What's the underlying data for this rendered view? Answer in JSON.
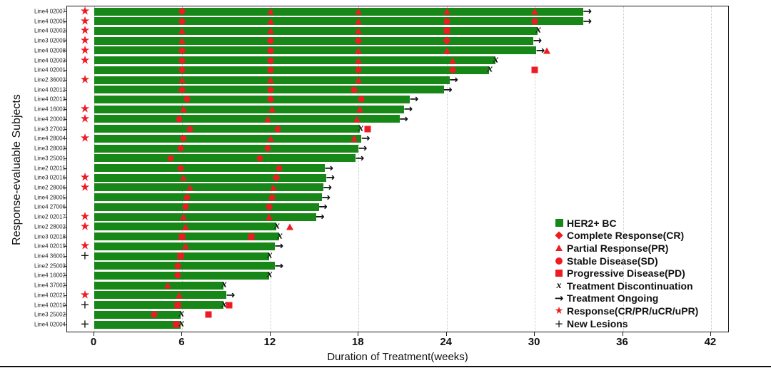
{
  "colors": {
    "bar_green": "#178717",
    "marker_red": "#ed1c24",
    "marker_black": "#111111",
    "gridline": "#c9c9c9"
  },
  "glyphs": {
    "discontinuation": "x",
    "ongoing": "→",
    "response_star": "★",
    "new_lesions": "+"
  },
  "chart_data": {
    "type": "bar",
    "orientation": "horizontal-swimmer",
    "title": "",
    "xlabel": "Duration of Treatment(weeks)",
    "ylabel": "Response-evaluable Subjects",
    "xlim": [
      0,
      42
    ],
    "xticks": [
      0,
      6,
      12,
      18,
      24,
      30,
      36,
      42
    ],
    "grid": "vertical-dotted",
    "legend_position": "bottom-right-inside",
    "legend": [
      {
        "marker": "green-square",
        "label": "HER2+ BC"
      },
      {
        "marker": "red-diamond",
        "label": "Complete Response(CR)"
      },
      {
        "marker": "red-triangle",
        "label": "Partial Response(PR)"
      },
      {
        "marker": "red-circle",
        "label": "Stable Disease(SD)"
      },
      {
        "marker": "red-square",
        "label": "Progressive Disease(PD)"
      },
      {
        "marker": "black-x",
        "label": "Treatment Discontinuation"
      },
      {
        "marker": "black-arrow",
        "label": "Treatment Ongoing"
      },
      {
        "marker": "red-star",
        "label": "Response(CR/PR/uCR/uPR)"
      },
      {
        "marker": "black-plus",
        "label": "New Lesions"
      }
    ],
    "rows": [
      {
        "subject": "Line4 02007",
        "duration_weeks": 33.3,
        "end": "ongoing",
        "response_star": true,
        "new_lesions": false,
        "assessments": [
          {
            "week": 6,
            "result": "SD"
          },
          {
            "week": 12,
            "result": "PR"
          },
          {
            "week": 18,
            "result": "PR"
          },
          {
            "week": 24,
            "result": "PR"
          },
          {
            "week": 30,
            "result": "PR"
          }
        ]
      },
      {
        "subject": "Line4 02005",
        "duration_weeks": 33.3,
        "end": "ongoing",
        "response_star": true,
        "new_lesions": false,
        "assessments": [
          {
            "week": 6,
            "result": "SD"
          },
          {
            "week": 12,
            "result": "PR"
          },
          {
            "week": 18,
            "result": "PR"
          },
          {
            "week": 24,
            "result": "SD"
          },
          {
            "week": 30,
            "result": "SD"
          }
        ]
      },
      {
        "subject": "Line4 02002",
        "duration_weeks": 30.2,
        "end": "discontinued",
        "response_star": true,
        "new_lesions": false,
        "assessments": [
          {
            "week": 6,
            "result": "PR"
          },
          {
            "week": 12,
            "result": "PR"
          },
          {
            "week": 18,
            "result": "PR"
          },
          {
            "week": 24,
            "result": "PD"
          }
        ]
      },
      {
        "subject": "Line3 02009",
        "duration_weeks": 29.9,
        "end": "ongoing",
        "response_star": true,
        "new_lesions": false,
        "assessments": [
          {
            "week": 6,
            "result": "PR"
          },
          {
            "week": 12,
            "result": "CR"
          },
          {
            "week": 18,
            "result": "CR"
          },
          {
            "week": 24,
            "result": "CR"
          }
        ]
      },
      {
        "subject": "Line4 02008",
        "duration_weeks": 30.1,
        "end": "ongoing",
        "response_star": true,
        "new_lesions": false,
        "assessments": [
          {
            "week": 6,
            "result": "SD"
          },
          {
            "week": 12,
            "result": "SD"
          },
          {
            "week": 18,
            "result": "PR"
          },
          {
            "week": 24,
            "result": "PR"
          },
          {
            "week": 30.8,
            "result": "PR"
          }
        ]
      },
      {
        "subject": "Line4 02003",
        "duration_weeks": 27.3,
        "end": "discontinued",
        "response_star": true,
        "new_lesions": false,
        "assessments": [
          {
            "week": 6,
            "result": "SD"
          },
          {
            "week": 12,
            "result": "SD"
          },
          {
            "week": 18,
            "result": "PR"
          },
          {
            "week": 24.4,
            "result": "PR"
          }
        ]
      },
      {
        "subject": "Line4 02001",
        "duration_weeks": 26.9,
        "end": "discontinued",
        "response_star": false,
        "new_lesions": false,
        "assessments": [
          {
            "week": 6,
            "result": "SD"
          },
          {
            "week": 12,
            "result": "SD"
          },
          {
            "week": 18,
            "result": "SD"
          },
          {
            "week": 24.4,
            "result": "SD"
          },
          {
            "week": 30,
            "result": "PD"
          }
        ]
      },
      {
        "subject": "Line2 36002",
        "duration_weeks": 24.2,
        "end": "ongoing",
        "response_star": true,
        "new_lesions": false,
        "assessments": [
          {
            "week": 6,
            "result": "PR"
          },
          {
            "week": 12,
            "result": "PR"
          },
          {
            "week": 18,
            "result": "PR"
          }
        ]
      },
      {
        "subject": "Line4 02012",
        "duration_weeks": 23.8,
        "end": "ongoing",
        "response_star": false,
        "new_lesions": false,
        "assessments": [
          {
            "week": 6,
            "result": "SD"
          },
          {
            "week": 12,
            "result": "SD"
          },
          {
            "week": 17.7,
            "result": "SD"
          }
        ]
      },
      {
        "subject": "Line4 02013",
        "duration_weeks": 21.5,
        "end": "ongoing",
        "response_star": false,
        "new_lesions": false,
        "assessments": [
          {
            "week": 6.3,
            "result": "SD"
          },
          {
            "week": 12,
            "result": "SD"
          },
          {
            "week": 18.2,
            "result": "SD"
          }
        ]
      },
      {
        "subject": "Line4 16003",
        "duration_weeks": 21.1,
        "end": "ongoing",
        "response_star": true,
        "new_lesions": false,
        "assessments": [
          {
            "week": 6.1,
            "result": "PR"
          },
          {
            "week": 12.1,
            "result": "PR"
          },
          {
            "week": 18.1,
            "result": "PR"
          }
        ]
      },
      {
        "subject": "Line4 20003",
        "duration_weeks": 20.8,
        "end": "ongoing",
        "response_star": true,
        "new_lesions": false,
        "assessments": [
          {
            "week": 5.8,
            "result": "SD"
          },
          {
            "week": 11.8,
            "result": "PR"
          },
          {
            "week": 17.9,
            "result": "PR"
          }
        ]
      },
      {
        "subject": "Line3 27002",
        "duration_weeks": 18.1,
        "end": "discontinued",
        "response_star": false,
        "new_lesions": false,
        "assessments": [
          {
            "week": 6.5,
            "result": "SD"
          },
          {
            "week": 12.5,
            "result": "SD"
          },
          {
            "week": 18.6,
            "result": "PD"
          }
        ]
      },
      {
        "subject": "Line4 28004",
        "duration_weeks": 18.2,
        "end": "ongoing",
        "response_star": true,
        "new_lesions": false,
        "assessments": [
          {
            "week": 6.1,
            "result": "SD"
          },
          {
            "week": 12,
            "result": "PR"
          },
          {
            "week": 17.7,
            "result": "PR"
          }
        ]
      },
      {
        "subject": "Line3 28003",
        "duration_weeks": 18.0,
        "end": "ongoing",
        "response_star": false,
        "new_lesions": false,
        "assessments": [
          {
            "week": 5.9,
            "result": "SD"
          },
          {
            "week": 11.8,
            "result": "SD"
          }
        ]
      },
      {
        "subject": "Line3 25001",
        "duration_weeks": 17.8,
        "end": "ongoing",
        "response_star": false,
        "new_lesions": false,
        "assessments": [
          {
            "week": 5.2,
            "result": "SD"
          },
          {
            "week": 11.3,
            "result": "SD"
          }
        ]
      },
      {
        "subject": "Line2 02015",
        "duration_weeks": 15.7,
        "end": "ongoing",
        "response_star": false,
        "new_lesions": false,
        "assessments": [
          {
            "week": 5.9,
            "result": "SD"
          },
          {
            "week": 12.6,
            "result": "SD"
          }
        ]
      },
      {
        "subject": "Line3 02016",
        "duration_weeks": 15.8,
        "end": "ongoing",
        "response_star": true,
        "new_lesions": false,
        "assessments": [
          {
            "week": 6.1,
            "result": "PR"
          },
          {
            "week": 12.4,
            "result": "CR"
          }
        ]
      },
      {
        "subject": "Line2 28006",
        "duration_weeks": 15.6,
        "end": "ongoing",
        "response_star": true,
        "new_lesions": false,
        "assessments": [
          {
            "week": 6.5,
            "result": "PR"
          },
          {
            "week": 12.2,
            "result": "PR"
          }
        ]
      },
      {
        "subject": "Line4 28005",
        "duration_weeks": 15.5,
        "end": "ongoing",
        "response_star": false,
        "new_lesions": false,
        "assessments": [
          {
            "week": 6.3,
            "result": "SD"
          },
          {
            "week": 12.1,
            "result": "SD"
          }
        ]
      },
      {
        "subject": "Line4 27006",
        "duration_weeks": 15.3,
        "end": "ongoing",
        "response_star": false,
        "new_lesions": false,
        "assessments": [
          {
            "week": 6.2,
            "result": "SD"
          },
          {
            "week": 11.9,
            "result": "SD"
          }
        ]
      },
      {
        "subject": "Line2 02017",
        "duration_weeks": 15.1,
        "end": "ongoing",
        "response_star": true,
        "new_lesions": false,
        "assessments": [
          {
            "week": 6.1,
            "result": "PR"
          },
          {
            "week": 11.9,
            "result": "PR"
          }
        ]
      },
      {
        "subject": "Line2 28002",
        "duration_weeks": 12.4,
        "end": "discontinued",
        "response_star": true,
        "new_lesions": false,
        "assessments": [
          {
            "week": 6.2,
            "result": "PR"
          },
          {
            "week": 13.3,
            "result": "PR"
          }
        ]
      },
      {
        "subject": "Line3 02018",
        "duration_weeks": 12.6,
        "end": "discontinued",
        "response_star": false,
        "new_lesions": false,
        "assessments": [
          {
            "week": 6,
            "result": "PD"
          },
          {
            "week": 10.7,
            "result": "PD"
          }
        ]
      },
      {
        "subject": "Line4 02019",
        "duration_weeks": 12.3,
        "end": "ongoing",
        "response_star": true,
        "new_lesions": false,
        "assessments": [
          {
            "week": 6.2,
            "result": "PR"
          }
        ]
      },
      {
        "subject": "Line4 36001",
        "duration_weeks": 11.9,
        "end": "discontinued",
        "response_star": false,
        "new_lesions": true,
        "assessments": [
          {
            "week": 5.9,
            "result": "PD"
          }
        ]
      },
      {
        "subject": "Line2 25003",
        "duration_weeks": 12.3,
        "end": "ongoing",
        "response_star": false,
        "new_lesions": false,
        "assessments": [
          {
            "week": 5.7,
            "result": "SD"
          }
        ]
      },
      {
        "subject": "Line4 16002",
        "duration_weeks": 11.9,
        "end": "discontinued",
        "response_star": false,
        "new_lesions": false,
        "assessments": [
          {
            "week": 5.7,
            "result": "SD"
          }
        ]
      },
      {
        "subject": "Line4 37002",
        "duration_weeks": 8.8,
        "end": "discontinued",
        "response_star": false,
        "new_lesions": false,
        "assessments": [
          {
            "week": 5.0,
            "result": "PR"
          }
        ]
      },
      {
        "subject": "Line4 02021",
        "duration_weeks": 9.0,
        "end": "ongoing",
        "response_star": true,
        "new_lesions": false,
        "assessments": [
          {
            "week": 5.8,
            "result": "PR"
          }
        ]
      },
      {
        "subject": "Line4 02010",
        "duration_weeks": 8.8,
        "end": "discontinued",
        "response_star": false,
        "new_lesions": true,
        "assessments": [
          {
            "week": 5.7,
            "result": "PD"
          },
          {
            "week": 9.2,
            "result": "PD"
          }
        ]
      },
      {
        "subject": "Line3 25002",
        "duration_weeks": 5.9,
        "end": "discontinued",
        "response_star": false,
        "new_lesions": false,
        "assessments": [
          {
            "week": 4.1,
            "result": "SD"
          },
          {
            "week": 7.8,
            "result": "PD"
          }
        ]
      },
      {
        "subject": "Line4 02004",
        "duration_weeks": 5.9,
        "end": "discontinued",
        "response_star": false,
        "new_lesions": true,
        "assessments": [
          {
            "week": 5.6,
            "result": "PD"
          }
        ]
      }
    ]
  }
}
